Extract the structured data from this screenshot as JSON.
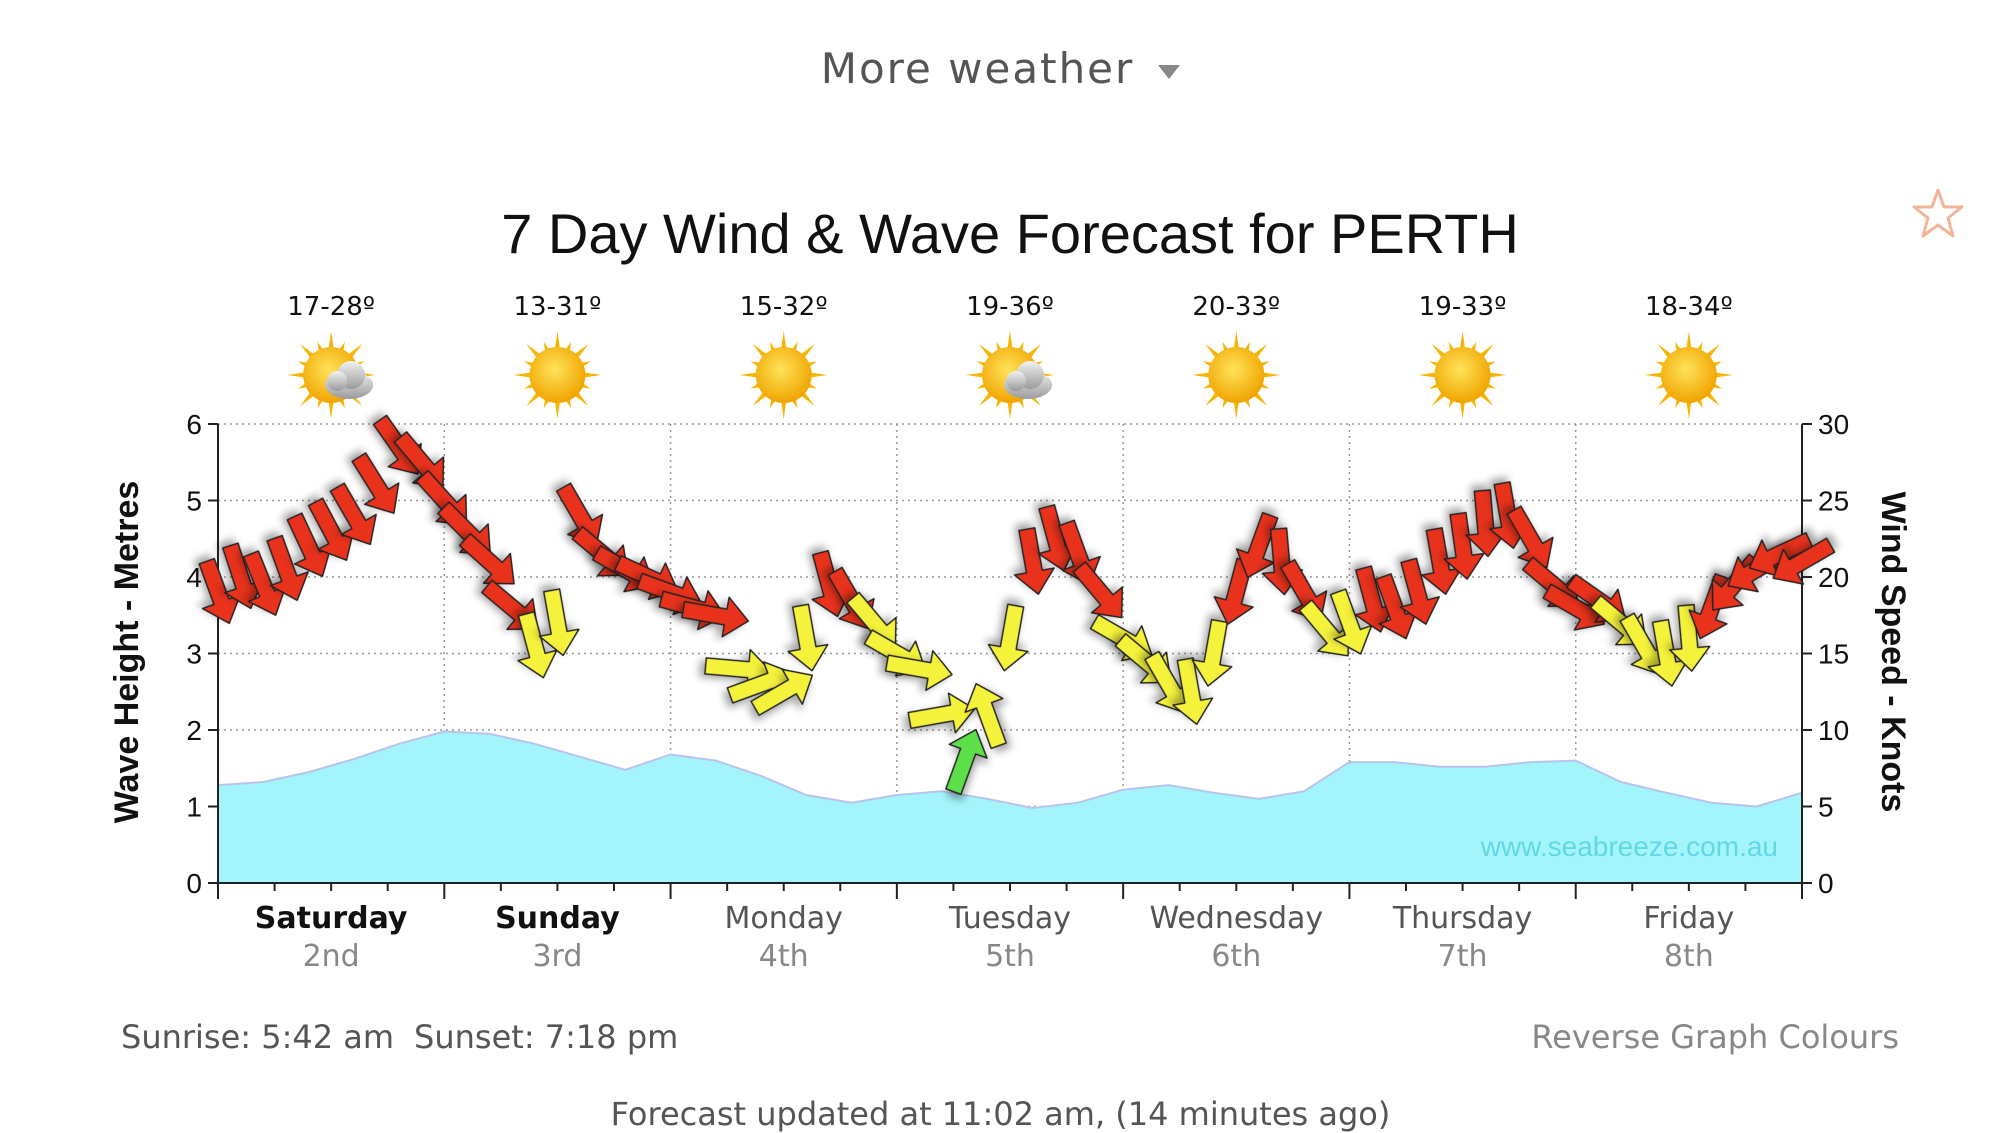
{
  "header": {
    "more_weather": "More weather"
  },
  "footer": {
    "sunrise": "Sunrise: 5:42 am",
    "sunset": "Sunset: 7:18 pm",
    "reverse": "Reverse Graph Colours",
    "updated": "Forecast updated at 11:02 am, (14 minutes ago)"
  },
  "colors": {
    "strong_wind": "#e8321e",
    "moderate_wind": "#f4f23a",
    "light_wind": "#5ce04a",
    "wave_fill": "#a4f4fc",
    "wave_line": "#b8c4ec",
    "sun": "#f7b400"
  },
  "chart_data": {
    "type": "area",
    "title": "7 Day Wind & Wave Forecast for PERTH",
    "ylabel": "Wave Height - Metres",
    "y2label": "Wind Speed - Knots",
    "ylim": [
      0,
      6
    ],
    "y2lim": [
      0,
      30
    ],
    "yticks": [
      0,
      1,
      2,
      3,
      4,
      5,
      6
    ],
    "y2ticks": [
      0,
      5,
      10,
      15,
      20,
      25,
      30
    ],
    "watermark": "www.seabreeze.com.au",
    "grid": true,
    "days": [
      {
        "name": "Saturday",
        "date": "2nd",
        "temp": "17-28º",
        "icon": "sun-cloud-icon",
        "bold": true
      },
      {
        "name": "Sunday",
        "date": "3rd",
        "temp": "13-31º",
        "icon": "sun-icon",
        "bold": true
      },
      {
        "name": "Monday",
        "date": "4th",
        "temp": "15-32º",
        "icon": "sun-icon",
        "bold": false
      },
      {
        "name": "Tuesday",
        "date": "5th",
        "temp": "19-36º",
        "icon": "sun-cloud-icon",
        "bold": false
      },
      {
        "name": "Wednesday",
        "date": "6th",
        "temp": "20-33º",
        "icon": "sun-icon",
        "bold": false
      },
      {
        "name": "Thursday",
        "date": "7th",
        "temp": "19-33º",
        "icon": "sun-icon",
        "bold": false
      },
      {
        "name": "Friday",
        "date": "8th",
        "temp": "18-34º",
        "icon": "sun-icon",
        "bold": false
      }
    ],
    "wave_series": {
      "name": "Wave Height",
      "x_days": [
        0,
        0.2,
        0.4,
        0.6,
        0.8,
        1.0,
        1.2,
        1.4,
        1.6,
        1.8,
        2.0,
        2.2,
        2.4,
        2.6,
        2.8,
        3.0,
        3.2,
        3.4,
        3.6,
        3.8,
        4.0,
        4.2,
        4.4,
        4.6,
        4.8,
        5.0,
        5.2,
        5.4,
        5.6,
        5.8,
        6.0,
        6.2,
        6.4,
        6.6,
        6.8,
        7.0
      ],
      "values": [
        1.28,
        1.32,
        1.45,
        1.62,
        1.82,
        1.98,
        1.95,
        1.82,
        1.65,
        1.48,
        1.68,
        1.6,
        1.4,
        1.15,
        1.05,
        1.15,
        1.2,
        1.1,
        0.98,
        1.05,
        1.22,
        1.28,
        1.18,
        1.1,
        1.2,
        1.58,
        1.58,
        1.52,
        1.52,
        1.58,
        1.6,
        1.32,
        1.18,
        1.05,
        1.0,
        1.18
      ]
    },
    "wind_series": {
      "name": "Wind Speed",
      "x_days": [
        0,
        0.1,
        0.2,
        0.3,
        0.4,
        0.5,
        0.6,
        0.7,
        0.8,
        0.9,
        1.0,
        1.1,
        1.2,
        1.3,
        1.4,
        1.5,
        1.6,
        1.7,
        1.8,
        1.9,
        2.0,
        2.1,
        2.2,
        2.3,
        2.4,
        2.5,
        2.6,
        2.7,
        2.8,
        2.9,
        3.0,
        3.1,
        3.2,
        3.3,
        3.4,
        3.5,
        3.6,
        3.7,
        3.8,
        3.9,
        4.0,
        4.1,
        4.2,
        4.3,
        4.4,
        4.5,
        4.6,
        4.7,
        4.8,
        4.9,
        5.0,
        5.1,
        5.2,
        5.3,
        5.4,
        5.5,
        5.6,
        5.7,
        5.8,
        5.9,
        6.0,
        6.1,
        6.2,
        6.3,
        6.4,
        6.5,
        6.6,
        6.7,
        6.8,
        6.9,
        7.0
      ],
      "values": [
        19,
        20,
        19.5,
        20.5,
        22,
        23,
        24,
        26,
        28.5,
        27.5,
        25,
        23,
        21,
        18,
        15.5,
        17,
        24,
        21.5,
        20.5,
        20,
        19,
        18,
        17.5,
        14,
        13,
        12.5,
        16,
        19.5,
        18.5,
        17,
        15,
        14,
        11,
        8,
        11,
        16,
        21,
        22.5,
        21.5,
        19,
        16,
        14.5,
        13,
        12.5,
        15,
        19,
        22,
        21,
        19,
        16.5,
        17,
        18.5,
        18,
        19,
        21,
        22,
        23.5,
        24,
        22.5,
        19.5,
        18,
        18.5,
        17,
        15.5,
        15,
        16,
        18,
        19.5,
        20.5,
        21.5,
        21
      ],
      "direction_deg": [
        340,
        342,
        338,
        340,
        335,
        332,
        330,
        328,
        325,
        320,
        318,
        315,
        312,
        310,
        345,
        350,
        330,
        310,
        300,
        295,
        290,
        285,
        280,
        275,
        250,
        240,
        350,
        345,
        330,
        320,
        300,
        280,
        260,
        200,
        160,
        10,
        350,
        345,
        340,
        320,
        300,
        310,
        330,
        350,
        10,
        15,
        20,
        355,
        330,
        320,
        340,
        345,
        340,
        345,
        350,
        352,
        355,
        350,
        330,
        310,
        300,
        305,
        310,
        330,
        350,
        355,
        20,
        40,
        60,
        65,
        60
      ]
    }
  }
}
